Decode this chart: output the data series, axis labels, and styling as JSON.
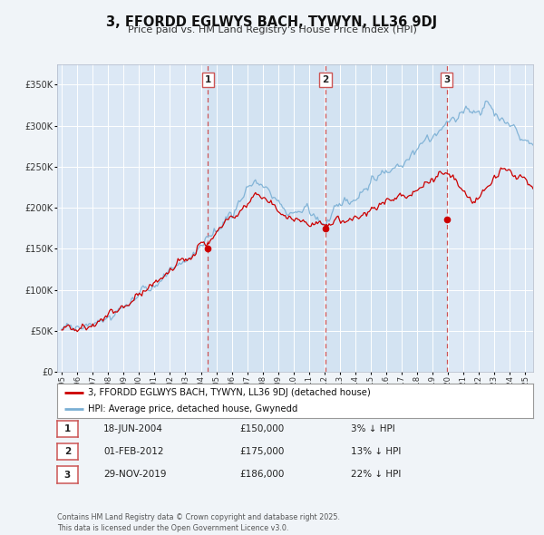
{
  "title": "3, FFORDD EGLWYS BACH, TYWYN, LL36 9DJ",
  "subtitle": "Price paid vs. HM Land Registry's House Price Index (HPI)",
  "bg_color": "#f0f4f8",
  "plot_bg_color": "#dce8f5",
  "shade_bg_color": "#cce0f0",
  "grid_color": "#ffffff",
  "red_line_color": "#cc0000",
  "blue_line_color": "#7aafd4",
  "vline_color": "#cc4444",
  "ylim": [
    0,
    375000
  ],
  "yticks": [
    0,
    50000,
    100000,
    150000,
    200000,
    250000,
    300000,
    350000
  ],
  "ytick_labels": [
    "£0",
    "£50K",
    "£100K",
    "£150K",
    "£200K",
    "£250K",
    "£300K",
    "£350K"
  ],
  "xlim_start": 1994.7,
  "xlim_end": 2025.5,
  "xticks": [
    1995,
    1996,
    1997,
    1998,
    1999,
    2000,
    2001,
    2002,
    2003,
    2004,
    2005,
    2006,
    2007,
    2008,
    2009,
    2010,
    2011,
    2012,
    2013,
    2014,
    2015,
    2016,
    2017,
    2018,
    2019,
    2020,
    2021,
    2022,
    2023,
    2024,
    2025
  ],
  "sale_dates": [
    2004.46,
    2012.08,
    2019.91
  ],
  "sale_prices": [
    150000,
    175000,
    186000
  ],
  "sale_labels": [
    "1",
    "2",
    "3"
  ],
  "sale_date_strs": [
    "18-JUN-2004",
    "01-FEB-2012",
    "29-NOV-2019"
  ],
  "sale_price_strs": [
    "£150,000",
    "£175,000",
    "£186,000"
  ],
  "sale_pct_strs": [
    "3% ↓ HPI",
    "13% ↓ HPI",
    "22% ↓ HPI"
  ],
  "legend_red_label": "3, FFORDD EGLWYS BACH, TYWYN, LL36 9DJ (detached house)",
  "legend_blue_label": "HPI: Average price, detached house, Gwynedd",
  "footer_text": "Contains HM Land Registry data © Crown copyright and database right 2025.\nThis data is licensed under the Open Government Licence v3.0."
}
